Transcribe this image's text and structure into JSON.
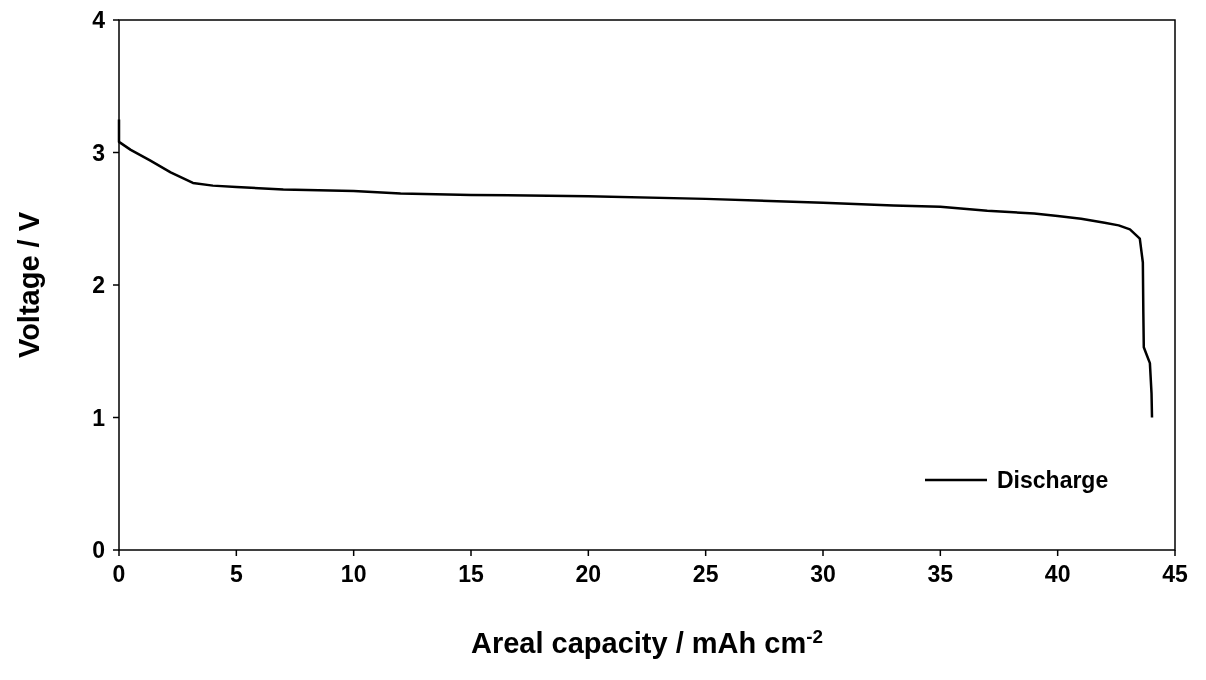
{
  "chart_data": {
    "type": "line",
    "xlabel": "Areal capacity / mAh cm$^{-2}$",
    "ylabel": "Voltage / V",
    "xlim": [
      0,
      45
    ],
    "ylim": [
      0,
      4
    ],
    "xticks": [
      0,
      5,
      10,
      15,
      20,
      25,
      30,
      35,
      40,
      45
    ],
    "yticks": [
      0,
      1,
      2,
      3,
      4
    ],
    "grid": false,
    "legend": "bottom right",
    "series": [
      {
        "name": "Discharge",
        "color": "#000000",
        "x": [
          0,
          0,
          0.5,
          1.32,
          2.2,
          3.15,
          4,
          5,
          7,
          10,
          12,
          15,
          20,
          25,
          30,
          33,
          35,
          37,
          39,
          40,
          41,
          42,
          42.6,
          43.08,
          43.5,
          43.63,
          43.65,
          43.67,
          43.8,
          43.93,
          44.0,
          44.02
        ],
        "values": [
          3.25,
          3.08,
          3.02,
          2.94,
          2.85,
          2.77,
          2.75,
          2.74,
          2.72,
          2.71,
          2.69,
          2.68,
          2.67,
          2.65,
          2.62,
          2.6,
          2.59,
          2.56,
          2.54,
          2.52,
          2.5,
          2.47,
          2.45,
          2.42,
          2.35,
          2.17,
          1.8,
          1.53,
          1.47,
          1.41,
          1.18,
          1.0
        ]
      }
    ]
  }
}
